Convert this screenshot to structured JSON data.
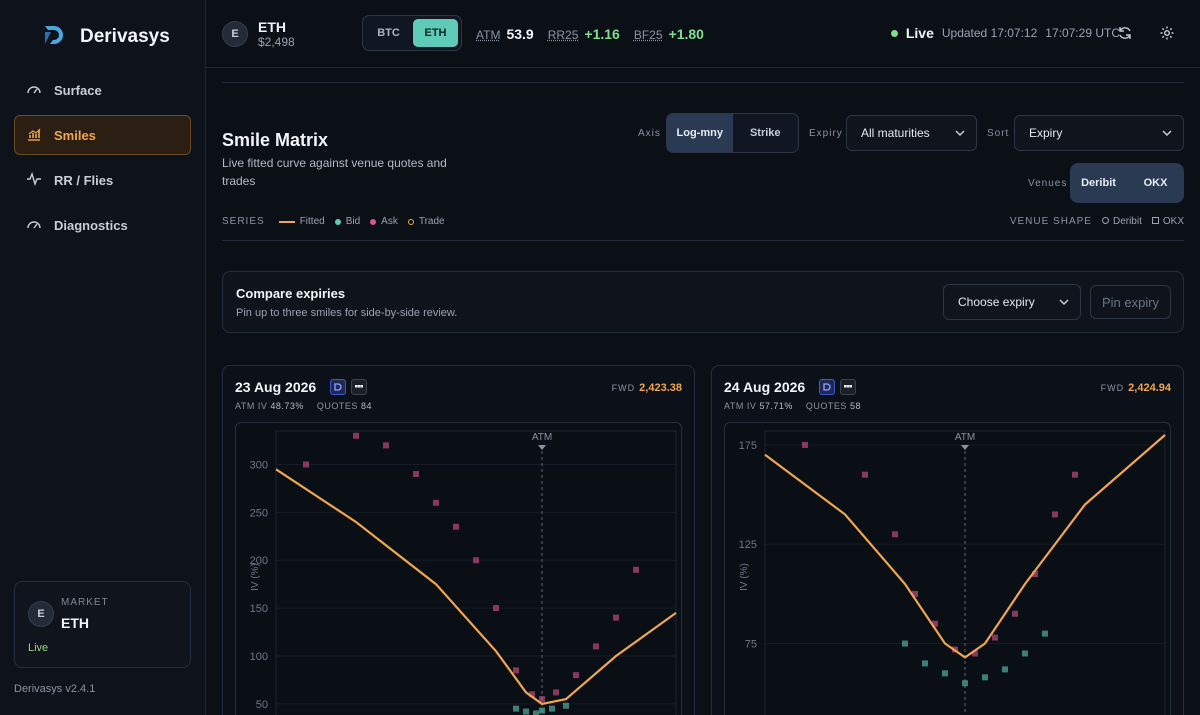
{
  "brand": {
    "name": "Derivasys"
  },
  "nav": [
    {
      "label": "Surface",
      "icon": "gauge-icon",
      "active": false
    },
    {
      "label": "Smiles",
      "icon": "bar-chart-icon",
      "active": true
    },
    {
      "label": "RR / Flies",
      "icon": "pulse-icon",
      "active": false
    },
    {
      "label": "Diagnostics",
      "icon": "gauge-icon",
      "active": false
    }
  ],
  "market_card": {
    "avatar": "E",
    "label": "MARKET",
    "value": "ETH",
    "status": "Live"
  },
  "version": "Derivasys v2.4.1",
  "topbar": {
    "asset_avatar": "E",
    "asset": "ETH",
    "price": "$2,498",
    "currency_options": [
      "BTC",
      "ETH"
    ],
    "currency_selected": "ETH",
    "metrics": [
      {
        "key": "ATM",
        "value": "53.9"
      },
      {
        "key": "RR25",
        "value": "+1.16"
      },
      {
        "key": "BF25",
        "value": "+1.80"
      }
    ],
    "status": "Live",
    "updated": "Updated 17:07:12",
    "time": "17:07:29 UTC"
  },
  "header": {
    "title": "Smile Matrix",
    "subtitle": "Live fitted curve against venue quotes and trades",
    "axis_label": "Axis",
    "axis_options": [
      "Log-mny",
      "Strike"
    ],
    "axis_selected": "Log-mny",
    "expiry_label": "Expiry",
    "expiry_value": "All maturities",
    "sort_label": "Sort",
    "sort_value": "Expiry",
    "venues_label": "Venues",
    "venues": [
      "Deribit",
      "OKX"
    ]
  },
  "legend": {
    "label": "SERIES",
    "items": [
      {
        "label": "Fitted",
        "color": "#f0a650",
        "kind": "line"
      },
      {
        "label": "Bid",
        "color": "#5ecbb8",
        "kind": "dot"
      },
      {
        "label": "Ask",
        "color": "#d9558f",
        "kind": "dot"
      },
      {
        "label": "Trade",
        "color": "#f0a650",
        "kind": "ring"
      }
    ],
    "venue_shape_label": "VENUE SHAPE",
    "venue_shapes": [
      {
        "label": "Deribit",
        "shape": "circle"
      },
      {
        "label": "OKX",
        "shape": "square"
      }
    ]
  },
  "compare": {
    "title": "Compare expiries",
    "subtitle": "Pin up to three smiles for side-by-side review.",
    "select_value": "Choose expiry",
    "button": "Pin expiry"
  },
  "cards": [
    {
      "date": "23 Aug 2026",
      "atm_iv_label": "ATM IV",
      "atm_iv": "48.73%",
      "quotes_label": "QUOTES",
      "quotes": "84",
      "fwd_label": "FWD",
      "fwd": "2,423.38"
    },
    {
      "date": "24 Aug 2026",
      "atm_iv_label": "ATM IV",
      "atm_iv": "57.71%",
      "quotes_label": "QUOTES",
      "quotes": "58",
      "fwd_label": "FWD",
      "fwd": "2,424.94"
    }
  ],
  "chart_data": [
    {
      "type": "scatter",
      "title": "",
      "ylabel": "IV (%)",
      "atm_label": "ATM",
      "y_ticks": [
        50,
        100,
        150,
        200,
        250,
        300
      ],
      "ylim": [
        30,
        335
      ],
      "xlim": [
        -1,
        1
      ],
      "atm_x": 0.33,
      "fitted": {
        "name": "Fitted",
        "x": [
          -1,
          -0.6,
          -0.2,
          0.1,
          0.25,
          0.33,
          0.45,
          0.7,
          1
        ],
        "y": [
          295,
          240,
          175,
          105,
          62,
          50,
          55,
          100,
          145
        ]
      },
      "ask": {
        "name": "Ask",
        "x": [
          -0.85,
          -0.6,
          -0.45,
          -0.3,
          -0.2,
          -0.1,
          0.0,
          0.1,
          0.2,
          0.28,
          0.33,
          0.4,
          0.5,
          0.6,
          0.7,
          0.8
        ],
        "y": [
          300,
          330,
          320,
          290,
          260,
          235,
          200,
          150,
          85,
          60,
          55,
          62,
          80,
          110,
          140,
          190
        ]
      },
      "bid": {
        "name": "Bid",
        "x": [
          0.2,
          0.25,
          0.3,
          0.33,
          0.38,
          0.45
        ],
        "y": [
          45,
          42,
          40,
          43,
          45,
          48
        ]
      }
    },
    {
      "type": "scatter",
      "title": "",
      "ylabel": "IV (%)",
      "atm_label": "ATM",
      "y_ticks": [
        75,
        125,
        175
      ],
      "ylim": [
        35,
        182
      ],
      "xlim": [
        -1,
        1
      ],
      "atm_x": 0.0,
      "fitted": {
        "name": "Fitted",
        "x": [
          -1,
          -0.6,
          -0.3,
          -0.1,
          0.0,
          0.1,
          0.3,
          0.6,
          1
        ],
        "y": [
          170,
          140,
          105,
          75,
          68,
          75,
          105,
          145,
          180
        ]
      },
      "ask": {
        "name": "Ask",
        "x": [
          -0.8,
          -0.5,
          -0.35,
          -0.25,
          -0.15,
          -0.05,
          0.05,
          0.15,
          0.25,
          0.35,
          0.45,
          0.55
        ],
        "y": [
          175,
          160,
          130,
          100,
          85,
          72,
          70,
          78,
          90,
          110,
          140,
          160
        ]
      },
      "bid": {
        "name": "Bid",
        "x": [
          -0.3,
          -0.2,
          -0.1,
          0.0,
          0.1,
          0.2,
          0.3,
          0.4
        ],
        "y": [
          75,
          65,
          60,
          55,
          58,
          62,
          70,
          80
        ]
      }
    }
  ]
}
